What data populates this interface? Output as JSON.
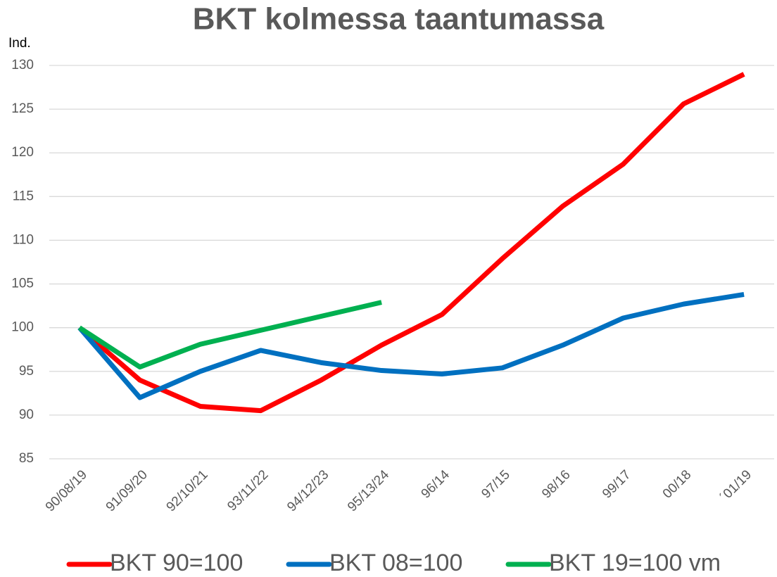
{
  "chart_data": {
    "type": "line",
    "title": "BKT kolmessa taantumassa",
    "y_label": "Ind.",
    "categories": [
      "90/08/19",
      "91/09/20",
      "92/10/21",
      "93/11/22",
      "94/12/23",
      "95/13/24",
      "96/14",
      "97/15",
      "98/16",
      "99/17",
      "00/18",
      "´01/19"
    ],
    "series": [
      {
        "name": "BKT 90=100",
        "color": "#ff0000",
        "values": [
          100,
          94.0,
          91.0,
          90.5,
          94.0,
          98.0,
          101.5,
          107.9,
          113.9,
          118.7,
          125.6,
          129.0
        ]
      },
      {
        "name": "BKT 08=100",
        "color": "#0070c0",
        "values": [
          100,
          92.0,
          95.0,
          97.4,
          96.0,
          95.1,
          94.7,
          95.4,
          98.0,
          101.1,
          102.7,
          103.8
        ]
      },
      {
        "name": "BKT 19=100 vm",
        "color": "#00b050",
        "values": [
          100,
          95.5,
          98.1,
          99.7,
          101.3,
          102.9,
          null,
          null,
          null,
          null,
          null,
          null
        ]
      }
    ],
    "ylim": [
      85,
      130
    ],
    "yticks": [
      85,
      90,
      95,
      100,
      105,
      110,
      115,
      120,
      125,
      130
    ],
    "grid": true,
    "legend": "bottom"
  }
}
